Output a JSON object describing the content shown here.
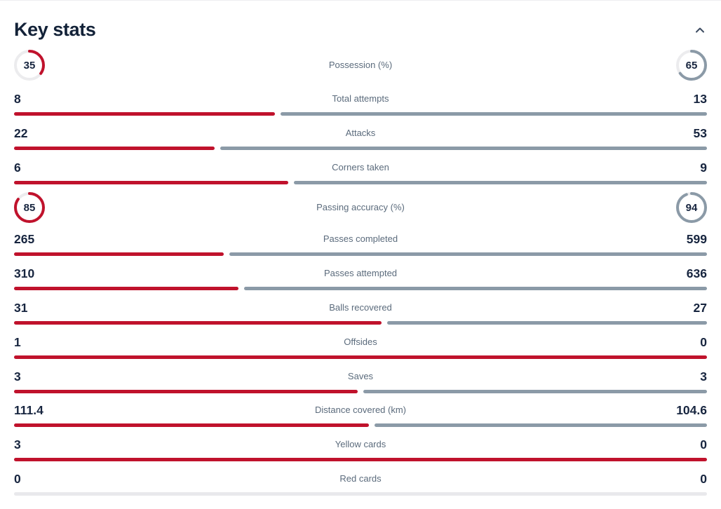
{
  "header": {
    "title": "Key stats",
    "collapse_icon": "chevron-up"
  },
  "colors": {
    "home_accent": "#c0122c",
    "away_accent": "#8b9aa7",
    "number_text": "#17253f",
    "label_text": "#5b6b7c",
    "title_text": "#132238",
    "donut_track": "#ececee",
    "neutral_bar": "#e9e9ec",
    "chevron": "#3c4a60"
  },
  "stats": {
    "rows": [
      {
        "label": "Possession (%)",
        "home": 35,
        "away": 65,
        "type": "circle"
      },
      {
        "label": "Total attempts",
        "home": 8,
        "away": 13,
        "type": "bar"
      },
      {
        "label": "Attacks",
        "home": 22,
        "away": 53,
        "type": "bar"
      },
      {
        "label": "Corners taken",
        "home": 6,
        "away": 9,
        "type": "bar"
      },
      {
        "label": "Passing accuracy (%)",
        "home": 85,
        "away": 94,
        "type": "circle"
      },
      {
        "label": "Passes completed",
        "home": 265,
        "away": 599,
        "type": "bar"
      },
      {
        "label": "Passes attempted",
        "home": 310,
        "away": 636,
        "type": "bar"
      },
      {
        "label": "Balls recovered",
        "home": 31,
        "away": 27,
        "type": "bar"
      },
      {
        "label": "Offsides",
        "home": 1,
        "away": 0,
        "type": "bar"
      },
      {
        "label": "Saves",
        "home": 3,
        "away": 3,
        "type": "bar"
      },
      {
        "label": "Distance covered (km)",
        "home": 111.4,
        "away": 104.6,
        "type": "bar"
      },
      {
        "label": "Yellow cards",
        "home": 3,
        "away": 0,
        "type": "bar"
      },
      {
        "label": "Red cards",
        "home": 0,
        "away": 0,
        "type": "bar"
      }
    ]
  },
  "chart_data": {
    "type": "bar",
    "title": "Key stats",
    "categories": [
      "Possession (%)",
      "Total attempts",
      "Attacks",
      "Corners taken",
      "Passing accuracy (%)",
      "Passes completed",
      "Passes attempted",
      "Balls recovered",
      "Offsides",
      "Saves",
      "Distance covered (km)",
      "Yellow cards",
      "Red cards"
    ],
    "series": [
      {
        "name": "home",
        "color": "#c0122c",
        "values": [
          35,
          8,
          22,
          6,
          85,
          265,
          310,
          31,
          1,
          3,
          111.4,
          3,
          0
        ]
      },
      {
        "name": "away",
        "color": "#8b9aa7",
        "values": [
          65,
          13,
          53,
          9,
          94,
          599,
          636,
          27,
          0,
          3,
          104.6,
          0,
          0
        ]
      }
    ],
    "legend_position": "none"
  }
}
